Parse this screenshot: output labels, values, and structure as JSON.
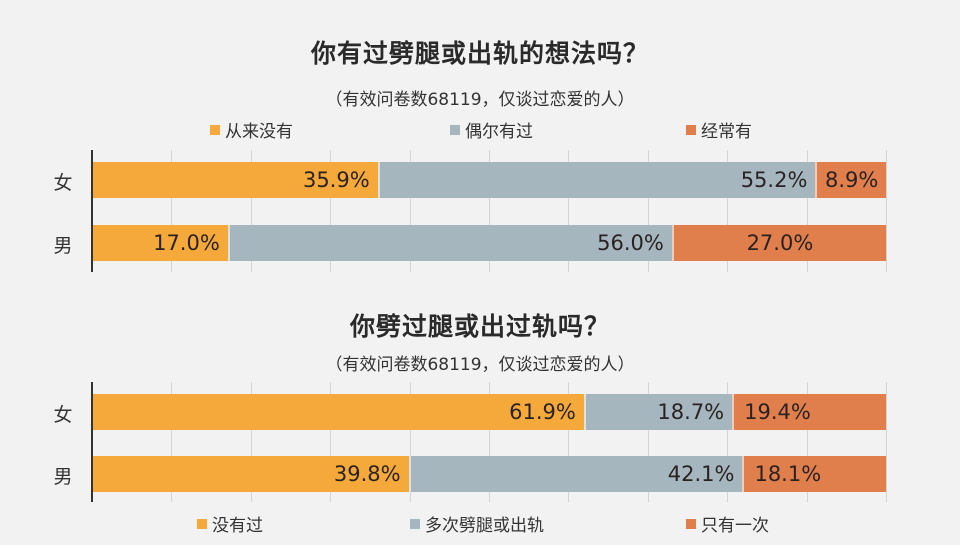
{
  "colors": {
    "background": "#f2f2f2",
    "orange": "#f5a93a",
    "gray_blue": "#a6b6be",
    "red_orange": "#e07f4c",
    "gridline": "#d4d4d4",
    "axis": "#333333"
  },
  "chart1": {
    "title": "你有过劈腿或出轨的想法吗？",
    "subtitle": "（有效问卷数68119，仅谈过恋爱的人）",
    "legend": [
      {
        "label": "从来没有",
        "color": "#f5a93a"
      },
      {
        "label": "偶尔有过",
        "color": "#a6b6be"
      },
      {
        "label": "经常有",
        "color": "#e07f4c"
      }
    ],
    "rows": [
      {
        "label": "女",
        "segments": [
          {
            "value": 35.9,
            "text": "35.9%"
          },
          {
            "value": 55.2,
            "text": "55.2%"
          },
          {
            "value": 8.9,
            "text": "8.9%"
          }
        ]
      },
      {
        "label": "男",
        "segments": [
          {
            "value": 17.0,
            "text": "17.0%"
          },
          {
            "value": 56.0,
            "text": "56.0%"
          },
          {
            "value": 27.0,
            "text": "27.0%"
          }
        ]
      }
    ]
  },
  "chart2": {
    "title": "你劈过腿或出过轨吗？",
    "subtitle": "（有效问卷数68119，仅谈过恋爱的人）",
    "legend": [
      {
        "label": "没有过",
        "color": "#f5a93a"
      },
      {
        "label": "多次劈腿或出轨",
        "color": "#a6b6be"
      },
      {
        "label": "只有一次",
        "color": "#e07f4c"
      }
    ],
    "rows": [
      {
        "label": "女",
        "segments": [
          {
            "value": 61.9,
            "text": "61.9%"
          },
          {
            "value": 18.7,
            "text": "18.7%"
          },
          {
            "value": 19.4,
            "text": "19.4%"
          }
        ]
      },
      {
        "label": "男",
        "segments": [
          {
            "value": 39.8,
            "text": "39.8%"
          },
          {
            "value": 42.1,
            "text": "42.1%"
          },
          {
            "value": 18.1,
            "text": "18.1%"
          }
        ]
      }
    ]
  },
  "chart_data": [
    {
      "type": "bar",
      "orientation": "horizontal",
      "stacked": true,
      "title": "你有过劈腿或出轨的想法吗？",
      "subtitle": "（有效问卷数68119，仅谈过恋爱的人）",
      "categories": [
        "女",
        "男"
      ],
      "series": [
        {
          "name": "从来没有",
          "values": [
            35.9,
            17.0
          ]
        },
        {
          "name": "偶尔有过",
          "values": [
            55.2,
            56.0
          ]
        },
        {
          "name": "经常有",
          "values": [
            8.9,
            27.0
          ]
        }
      ],
      "xlabel": "",
      "ylabel": "",
      "xlim": [
        0,
        100
      ],
      "grid": true,
      "legend_position": "top",
      "unit": "%"
    },
    {
      "type": "bar",
      "orientation": "horizontal",
      "stacked": true,
      "title": "你劈过腿或出过轨吗？",
      "subtitle": "（有效问卷数68119，仅谈过恋爱的人）",
      "categories": [
        "女",
        "男"
      ],
      "series": [
        {
          "name": "没有过",
          "values": [
            61.9,
            39.8
          ]
        },
        {
          "name": "多次劈腿或出轨",
          "values": [
            18.7,
            42.1
          ]
        },
        {
          "name": "只有一次",
          "values": [
            19.4,
            18.1
          ]
        }
      ],
      "xlabel": "",
      "ylabel": "",
      "xlim": [
        0,
        100
      ],
      "grid": true,
      "legend_position": "bottom",
      "unit": "%"
    }
  ]
}
